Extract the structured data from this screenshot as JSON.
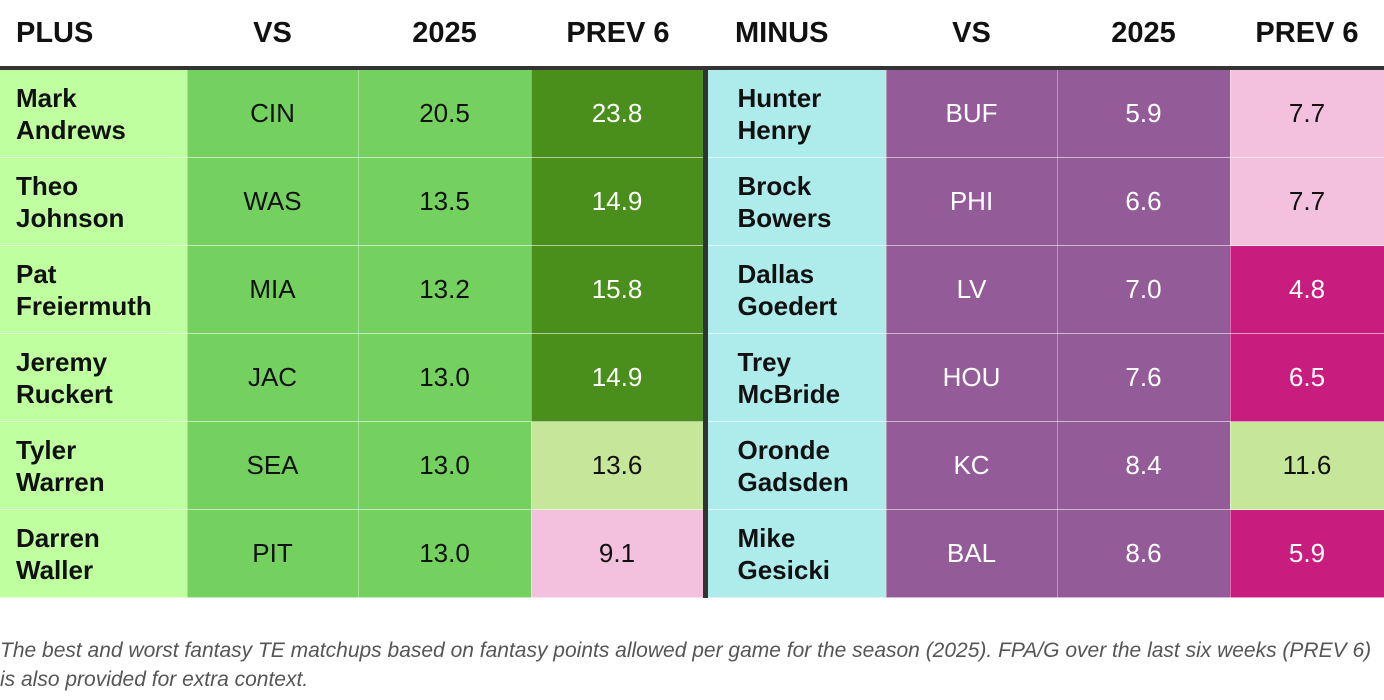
{
  "header": {
    "plus": "PLUS",
    "vs_left": "VS",
    "season_left": "2025",
    "prev_left": "PREV 6",
    "minus": "MINUS",
    "vs_right": "VS",
    "season_right": "2025",
    "prev_right": "PREV 6"
  },
  "rows": [
    {
      "plus": {
        "first": "Mark",
        "last": "Andrews",
        "vs": "CIN",
        "season": "20.5",
        "prev": "23.8"
      },
      "minus": {
        "first": "Hunter",
        "last": "Henry",
        "vs": "BUF",
        "season": "5.9",
        "prev": "7.7"
      }
    },
    {
      "plus": {
        "first": "Theo",
        "last": "Johnson",
        "vs": "WAS",
        "season": "13.5",
        "prev": "14.9"
      },
      "minus": {
        "first": "Brock",
        "last": "Bowers",
        "vs": "PHI",
        "season": "6.6",
        "prev": "7.7"
      }
    },
    {
      "plus": {
        "first": "Pat",
        "last": "Freiermuth",
        "vs": "MIA",
        "season": "13.2",
        "prev": "15.8"
      },
      "minus": {
        "first": "Dallas",
        "last": "Goedert",
        "vs": "LV",
        "season": "7.0",
        "prev": "4.8"
      }
    },
    {
      "plus": {
        "first": "Jeremy",
        "last": "Ruckert",
        "vs": "JAC",
        "season": "13.0",
        "prev": "14.9"
      },
      "minus": {
        "first": "Trey",
        "last": "McBride",
        "vs": "HOU",
        "season": "7.6",
        "prev": "6.5"
      }
    },
    {
      "plus": {
        "first": "Tyler",
        "last": "Warren",
        "vs": "SEA",
        "season": "13.0",
        "prev": "13.6"
      },
      "minus": {
        "first": "Oronde",
        "last": "Gadsden",
        "vs": "KC",
        "season": "8.4",
        "prev": "11.6"
      }
    },
    {
      "plus": {
        "first": "Darren",
        "last": "Waller",
        "vs": "PIT",
        "season": "13.0",
        "prev": "9.1"
      },
      "minus": {
        "first": "Mike",
        "last": "Gesicki",
        "vs": "BAL",
        "season": "8.6",
        "prev": "5.9"
      }
    }
  ],
  "colors": {
    "plus_player_bg": "#bfff9f",
    "plus_cell_bg": "#74d160",
    "prev_strong_green": "#4a8f1c",
    "prev_light_green": "#c6e69a",
    "prev_light_pink": "#f3c1de",
    "prev_magenta": "#c81c7e",
    "minus_player_bg": "#aeecec",
    "minus_cell_bg": "#935c98"
  },
  "caption": "The best and worst fantasy TE matchups based on fantasy points allowed per game for the season (2025). FPA/G over the last six weeks (PREV 6) is also provided for extra context."
}
